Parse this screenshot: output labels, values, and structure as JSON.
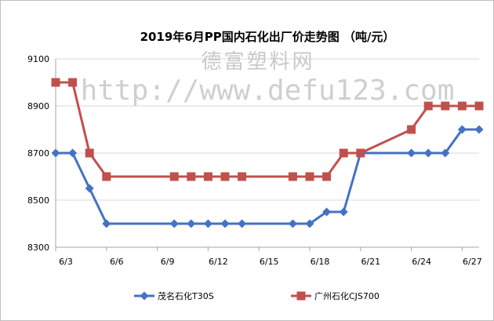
{
  "chart_data": {
    "type": "line",
    "title": "2019年6月PP国内石化出厂价走势图 （吨/元）",
    "xlabel": "",
    "ylabel": "",
    "x_tick_labels": [
      "6/3",
      "6/6",
      "6/9",
      "6/12",
      "6/15",
      "6/18",
      "6/21",
      "6/24",
      "6/27"
    ],
    "x_tick_days": [
      3,
      6,
      9,
      12,
      15,
      18,
      21,
      24,
      27
    ],
    "xlim": [
      3,
      28
    ],
    "ylim": [
      8300,
      9100
    ],
    "y_ticks": [
      8300,
      8500,
      8700,
      8900,
      9100
    ],
    "grid": "horizontal",
    "legend_position": "bottom",
    "series": [
      {
        "name": "茂名石化T30S",
        "color": "#4472c4",
        "marker": "diamond",
        "x": [
          3,
          4,
          5,
          6,
          10,
          11,
          12,
          13,
          14,
          17,
          18,
          19,
          20,
          21,
          24,
          25,
          26,
          27,
          28
        ],
        "values": [
          8700,
          8700,
          8550,
          8400,
          8400,
          8400,
          8400,
          8400,
          8400,
          8400,
          8400,
          8450,
          8450,
          8700,
          8700,
          8700,
          8700,
          8800,
          8800
        ]
      },
      {
        "name": "广州石化CJS700",
        "color": "#c0504d",
        "marker": "square",
        "x": [
          3,
          4,
          5,
          6,
          10,
          11,
          12,
          13,
          14,
          17,
          18,
          19,
          20,
          21,
          24,
          25,
          26,
          27,
          28
        ],
        "values": [
          9000,
          9000,
          8700,
          8600,
          8600,
          8600,
          8600,
          8600,
          8600,
          8600,
          8600,
          8600,
          8700,
          8700,
          8800,
          8900,
          8900,
          8900,
          8900
        ]
      }
    ]
  },
  "watermark": {
    "name": "德富塑料网",
    "url": "http://www.defu123.com"
  }
}
